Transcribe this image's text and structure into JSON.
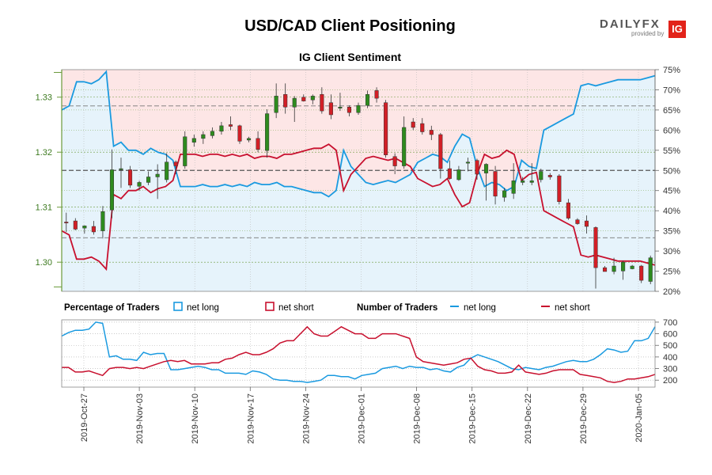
{
  "title": "USD/CAD Client Positioning",
  "subtitle": "IG Client Sentiment",
  "logo": {
    "brand_a": "DAILY",
    "brand_b": "FX",
    "provided_by": "provided by",
    "ig": "IG"
  },
  "legend": {
    "pct_header": "Percentage of Traders",
    "num_header": "Number of Traders",
    "net_long": "net long",
    "net_short": "net short"
  },
  "colors": {
    "long": "#1a9ae0",
    "short": "#c8102e",
    "up_candle": "#2e8b1e",
    "down_candle": "#d21f26",
    "long_fill": "#e6f3fb",
    "short_fill": "#fde6e6"
  },
  "chart_data": [
    {
      "type": "candlestick",
      "price_ticks": [
        1.3,
        1.31,
        1.32,
        1.33
      ],
      "price_range": [
        1.2947,
        1.335
      ],
      "pct_ticks": [
        "75%",
        "70%",
        "65%",
        "60%",
        "55%",
        "50%",
        "45%",
        "40%",
        "35%",
        "30%",
        "25%",
        "20%"
      ],
      "pct_range": [
        20,
        75
      ],
      "x_labels": [
        "2019-Oct-27",
        "2019-Nov-03",
        "2019-Nov-10",
        "2019-Nov-17",
        "2019-Nov-24",
        "2019-Dec-01",
        "2019-Dec-08",
        "2019-Dec-15",
        "2019-Dec-22",
        "2019-Dec-29",
        "2020-Jan-05"
      ],
      "candles": [
        {
          "o": 1.3073,
          "h": 1.309,
          "l": 1.3055,
          "c": 1.3072
        },
        {
          "o": 1.3075,
          "h": 1.308,
          "l": 1.3058,
          "c": 1.306
        },
        {
          "o": 1.3062,
          "h": 1.3067,
          "l": 1.3052,
          "c": 1.3066
        },
        {
          "o": 1.3065,
          "h": 1.3075,
          "l": 1.305,
          "c": 1.3055
        },
        {
          "o": 1.3057,
          "h": 1.3102,
          "l": 1.3043,
          "c": 1.3092
        },
        {
          "o": 1.3095,
          "h": 1.3205,
          "l": 1.308,
          "c": 1.3168
        },
        {
          "o": 1.3168,
          "h": 1.319,
          "l": 1.3135,
          "c": 1.317
        },
        {
          "o": 1.3168,
          "h": 1.3175,
          "l": 1.3135,
          "c": 1.314
        },
        {
          "o": 1.3138,
          "h": 1.3148,
          "l": 1.313,
          "c": 1.3145
        },
        {
          "o": 1.3145,
          "h": 1.3165,
          "l": 1.314,
          "c": 1.3155
        },
        {
          "o": 1.3155,
          "h": 1.3178,
          "l": 1.3115,
          "c": 1.316
        },
        {
          "o": 1.315,
          "h": 1.3198,
          "l": 1.3145,
          "c": 1.3182
        },
        {
          "o": 1.3182,
          "h": 1.3185,
          "l": 1.316,
          "c": 1.3175
        },
        {
          "o": 1.3175,
          "h": 1.3238,
          "l": 1.317,
          "c": 1.3228
        },
        {
          "o": 1.3218,
          "h": 1.3232,
          "l": 1.321,
          "c": 1.3225
        },
        {
          "o": 1.3225,
          "h": 1.3238,
          "l": 1.3215,
          "c": 1.3232
        },
        {
          "o": 1.323,
          "h": 1.3245,
          "l": 1.3225,
          "c": 1.3238
        },
        {
          "o": 1.3238,
          "h": 1.3255,
          "l": 1.3232,
          "c": 1.3248
        },
        {
          "o": 1.325,
          "h": 1.3265,
          "l": 1.324,
          "c": 1.3247
        },
        {
          "o": 1.3248,
          "h": 1.325,
          "l": 1.3215,
          "c": 1.322
        },
        {
          "o": 1.3222,
          "h": 1.3228,
          "l": 1.3218,
          "c": 1.3225
        },
        {
          "o": 1.3225,
          "h": 1.3238,
          "l": 1.32,
          "c": 1.3205
        },
        {
          "o": 1.3203,
          "h": 1.3278,
          "l": 1.319,
          "c": 1.327
        },
        {
          "o": 1.3272,
          "h": 1.3325,
          "l": 1.3262,
          "c": 1.3302
        },
        {
          "o": 1.3305,
          "h": 1.3325,
          "l": 1.327,
          "c": 1.3282
        },
        {
          "o": 1.3282,
          "h": 1.3302,
          "l": 1.3255,
          "c": 1.3298
        },
        {
          "o": 1.33,
          "h": 1.3305,
          "l": 1.3292,
          "c": 1.3293
        },
        {
          "o": 1.3295,
          "h": 1.3305,
          "l": 1.3287,
          "c": 1.3302
        },
        {
          "o": 1.3305,
          "h": 1.3318,
          "l": 1.327,
          "c": 1.3275
        },
        {
          "o": 1.329,
          "h": 1.3305,
          "l": 1.326,
          "c": 1.3268
        },
        {
          "o": 1.328,
          "h": 1.3308,
          "l": 1.3275,
          "c": 1.3282
        },
        {
          "o": 1.3282,
          "h": 1.3285,
          "l": 1.3265,
          "c": 1.3272
        },
        {
          "o": 1.3272,
          "h": 1.329,
          "l": 1.3268,
          "c": 1.3285
        },
        {
          "o": 1.3285,
          "h": 1.3312,
          "l": 1.328,
          "c": 1.3305
        },
        {
          "o": 1.3312,
          "h": 1.3318,
          "l": 1.329,
          "c": 1.3298
        },
        {
          "o": 1.329,
          "h": 1.3295,
          "l": 1.319,
          "c": 1.3195
        },
        {
          "o": 1.3192,
          "h": 1.3198,
          "l": 1.316,
          "c": 1.3175
        },
        {
          "o": 1.3175,
          "h": 1.3265,
          "l": 1.317,
          "c": 1.3245
        },
        {
          "o": 1.3255,
          "h": 1.3262,
          "l": 1.324,
          "c": 1.3245
        },
        {
          "o": 1.3252,
          "h": 1.3262,
          "l": 1.3232,
          "c": 1.3237
        },
        {
          "o": 1.324,
          "h": 1.3248,
          "l": 1.3222,
          "c": 1.3232
        },
        {
          "o": 1.3232,
          "h": 1.3235,
          "l": 1.3152,
          "c": 1.317
        },
        {
          "o": 1.317,
          "h": 1.3185,
          "l": 1.315,
          "c": 1.3152
        },
        {
          "o": 1.315,
          "h": 1.3175,
          "l": 1.3148,
          "c": 1.3168
        },
        {
          "o": 1.318,
          "h": 1.319,
          "l": 1.3165,
          "c": 1.3182
        },
        {
          "o": 1.3185,
          "h": 1.3188,
          "l": 1.315,
          "c": 1.316
        },
        {
          "o": 1.3162,
          "h": 1.318,
          "l": 1.3112,
          "c": 1.3178
        },
        {
          "o": 1.3165,
          "h": 1.3175,
          "l": 1.3105,
          "c": 1.312
        },
        {
          "o": 1.3118,
          "h": 1.3135,
          "l": 1.311,
          "c": 1.313
        },
        {
          "o": 1.3125,
          "h": 1.318,
          "l": 1.3115,
          "c": 1.3148
        },
        {
          "o": 1.3145,
          "h": 1.3155,
          "l": 1.314,
          "c": 1.3148
        },
        {
          "o": 1.3145,
          "h": 1.318,
          "l": 1.314,
          "c": 1.3148
        },
        {
          "o": 1.315,
          "h": 1.317,
          "l": 1.3145,
          "c": 1.3165
        },
        {
          "o": 1.3158,
          "h": 1.3162,
          "l": 1.315,
          "c": 1.3155
        },
        {
          "o": 1.3157,
          "h": 1.316,
          "l": 1.3105,
          "c": 1.311
        },
        {
          "o": 1.3108,
          "h": 1.3115,
          "l": 1.3077,
          "c": 1.308
        },
        {
          "o": 1.3077,
          "h": 1.308,
          "l": 1.3068,
          "c": 1.307
        },
        {
          "o": 1.3075,
          "h": 1.3085,
          "l": 1.3052,
          "c": 1.3065
        },
        {
          "o": 1.3063,
          "h": 1.3065,
          "l": 1.2952,
          "c": 1.299
        },
        {
          "o": 1.299,
          "h": 1.2993,
          "l": 1.2983,
          "c": 1.2983
        },
        {
          "o": 1.2983,
          "h": 1.3008,
          "l": 1.2978,
          "c": 1.2993
        },
        {
          "o": 1.2984,
          "h": 1.3003,
          "l": 1.2968,
          "c": 1.3
        },
        {
          "o": 1.2988,
          "h": 1.2995,
          "l": 1.2987,
          "c": 1.2993
        },
        {
          "o": 1.2993,
          "h": 1.2995,
          "l": 1.2962,
          "c": 1.2967
        },
        {
          "o": 1.2965,
          "h": 1.3012,
          "l": 1.296,
          "c": 1.3008
        }
      ],
      "net_long_pct": [
        65,
        66,
        72,
        72,
        71.5,
        72.5,
        74.5,
        56,
        57,
        55,
        55,
        54,
        55.5,
        54.5,
        54,
        52.5,
        46,
        46,
        46,
        46.5,
        46,
        46,
        46.5,
        46,
        46.5,
        46,
        47,
        46.5,
        46.5,
        47,
        46,
        46,
        45.5,
        45,
        44.5,
        44.5,
        43.5,
        45,
        55,
        51,
        49,
        47,
        46.5,
        47,
        47.5,
        47,
        48,
        49,
        52,
        53,
        54,
        53.5,
        52,
        56,
        59,
        58,
        51,
        46,
        47,
        46.5,
        45,
        46,
        52.5,
        51,
        50.5,
        60,
        61,
        62,
        63,
        64,
        71,
        71.5,
        71,
        71.5,
        72,
        72.5,
        72.5,
        72.5,
        72.5,
        73,
        73.5
      ],
      "net_short_pct": [
        35,
        34,
        28,
        28,
        28.5,
        27.5,
        25.5,
        44,
        43,
        45,
        45,
        46,
        44.5,
        45.5,
        46,
        47.5,
        54,
        54,
        54,
        53.5,
        54,
        54,
        53.5,
        54,
        53.5,
        54,
        53,
        53.5,
        53.5,
        53,
        54,
        54,
        54.5,
        55,
        55.5,
        55.5,
        56.5,
        55,
        45,
        49,
        51,
        53,
        53.5,
        53,
        52.5,
        53,
        52,
        51,
        48,
        47,
        46,
        46.5,
        48,
        44,
        41,
        42,
        49,
        54,
        53,
        53.5,
        55,
        54,
        47.5,
        49,
        49.5,
        40,
        39,
        38,
        37,
        36,
        29,
        28.5,
        29,
        28.5,
        28,
        27.5,
        27.5,
        27.5,
        27.5,
        27,
        26.5
      ]
    },
    {
      "type": "line",
      "trader_ticks": [
        200,
        300,
        400,
        500,
        600,
        700
      ],
      "trader_range": [
        140,
        720
      ],
      "series": [
        {
          "name": "net long",
          "values": [
            580,
            610,
            630,
            630,
            640,
            700,
            690,
            400,
            410,
            380,
            380,
            370,
            440,
            420,
            430,
            430,
            290,
            290,
            300,
            310,
            320,
            310,
            290,
            290,
            260,
            260,
            260,
            250,
            280,
            270,
            250,
            210,
            200,
            200,
            190,
            190,
            180,
            190,
            200,
            240,
            240,
            230,
            230,
            210,
            240,
            250,
            260,
            300,
            310,
            320,
            300,
            320,
            310,
            310,
            290,
            300,
            280,
            270,
            310,
            330,
            390,
            420,
            400,
            380,
            360,
            330,
            300,
            290,
            310,
            300,
            290,
            310,
            320,
            340,
            360,
            370,
            360,
            360,
            380,
            420,
            470,
            460,
            440,
            450,
            540,
            540,
            560,
            660
          ]
        },
        {
          "name": "net short",
          "values": [
            310,
            310,
            270,
            270,
            280,
            260,
            240,
            300,
            310,
            310,
            300,
            310,
            300,
            320,
            340,
            360,
            370,
            360,
            370,
            340,
            340,
            340,
            350,
            350,
            380,
            390,
            420,
            440,
            420,
            420,
            440,
            470,
            520,
            540,
            540,
            600,
            660,
            600,
            580,
            580,
            620,
            660,
            630,
            600,
            600,
            560,
            560,
            600,
            600,
            600,
            580,
            560,
            400,
            360,
            350,
            340,
            330,
            340,
            350,
            380,
            390,
            320,
            290,
            280,
            260,
            260,
            270,
            330,
            270,
            260,
            250,
            260,
            280,
            290,
            290,
            290,
            250,
            240,
            230,
            220,
            190,
            180,
            190,
            210,
            210,
            220,
            230,
            250
          ]
        }
      ]
    }
  ]
}
